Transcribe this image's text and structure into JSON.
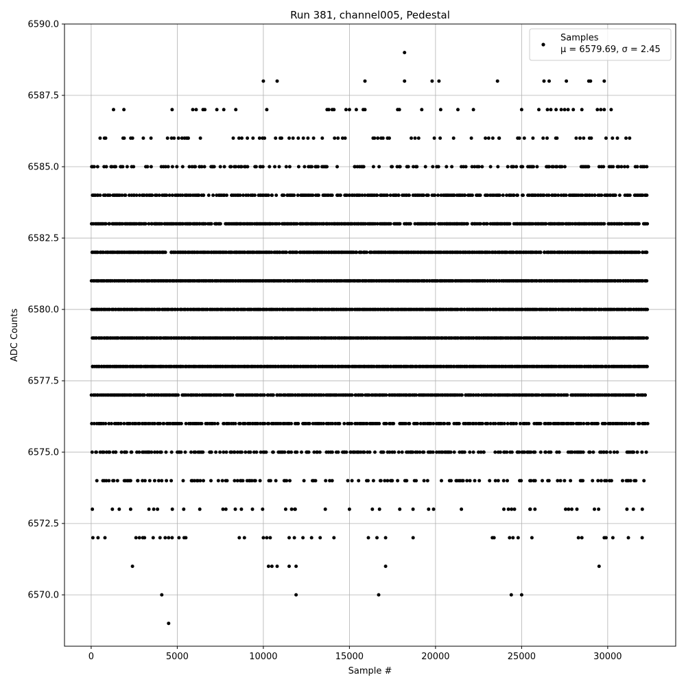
{
  "chart_data": {
    "type": "scatter",
    "title": "Run 381, channel005, Pedestal",
    "xlabel": "Sample #",
    "ylabel": "ADC Counts",
    "xlim": [
      -1550,
      33950
    ],
    "ylim": [
      6568.2,
      6590.0
    ],
    "xticks": [
      0,
      5000,
      10000,
      15000,
      20000,
      25000,
      30000
    ],
    "xtick_labels": [
      "0",
      "5000",
      "10000",
      "15000",
      "20000",
      "25000",
      "30000"
    ],
    "yticks": [
      6570.0,
      6572.5,
      6575.0,
      6577.5,
      6580.0,
      6582.5,
      6585.0,
      6587.5,
      6590.0
    ],
    "ytick_labels": [
      "6570.0",
      "6572.5",
      "6575.0",
      "6577.5",
      "6580.0",
      "6582.5",
      "6585.0",
      "6587.5",
      "6590.0"
    ],
    "grid": true,
    "legend_position": "top-right",
    "marker_color": "#000000",
    "grid_color": "#b0b0b0",
    "series": [
      {
        "name": "Samples",
        "legend_stats": "μ = 6579.69, σ = 2.45",
        "x_range": [
          0,
          32300
        ],
        "levels": [
          {
            "y": 6578,
            "density": 1.0
          },
          {
            "y": 6579,
            "density": 1.0
          },
          {
            "y": 6580,
            "density": 1.0
          },
          {
            "y": 6581,
            "density": 1.0
          },
          {
            "y": 6582,
            "density": 0.95
          },
          {
            "y": 6577,
            "density": 0.9
          },
          {
            "y": 6583,
            "density": 0.85
          },
          {
            "y": 6576,
            "density": 0.75
          },
          {
            "y": 6584,
            "density": 0.7
          },
          {
            "y": 6575,
            "density": 0.55
          },
          {
            "y": 6585,
            "density": 0.35
          },
          {
            "y": 6574,
            "density": 0.3
          },
          {
            "y": 6586,
            "density": 0.18
          },
          {
            "y": 6573,
            "density": 0.08
          }
        ],
        "sparse_points": [
          [
            100,
            6572
          ],
          [
            400,
            6572
          ],
          [
            800,
            6572
          ],
          [
            2600,
            6572
          ],
          [
            2800,
            6572
          ],
          [
            3000,
            6572
          ],
          [
            3100,
            6572
          ],
          [
            3600,
            6572
          ],
          [
            4000,
            6572
          ],
          [
            4300,
            6572
          ],
          [
            4500,
            6572
          ],
          [
            4700,
            6572
          ],
          [
            5100,
            6572
          ],
          [
            5400,
            6572
          ],
          [
            5500,
            6572
          ],
          [
            8600,
            6572
          ],
          [
            8900,
            6572
          ],
          [
            10000,
            6572
          ],
          [
            10200,
            6572
          ],
          [
            10400,
            6572
          ],
          [
            11500,
            6572
          ],
          [
            11800,
            6572
          ],
          [
            12300,
            6572
          ],
          [
            12800,
            6572
          ],
          [
            13300,
            6572
          ],
          [
            14100,
            6572
          ],
          [
            16100,
            6572
          ],
          [
            16600,
            6572
          ],
          [
            17100,
            6572
          ],
          [
            18700,
            6572
          ],
          [
            23300,
            6572
          ],
          [
            23400,
            6572
          ],
          [
            24300,
            6572
          ],
          [
            24500,
            6572
          ],
          [
            24800,
            6572
          ],
          [
            25600,
            6572
          ],
          [
            28300,
            6572
          ],
          [
            28500,
            6572
          ],
          [
            29800,
            6572
          ],
          [
            29900,
            6572
          ],
          [
            30300,
            6572
          ],
          [
            31200,
            6572
          ],
          [
            32000,
            6572
          ],
          [
            2400,
            6571
          ],
          [
            10300,
            6571
          ],
          [
            10500,
            6571
          ],
          [
            10800,
            6571
          ],
          [
            11500,
            6571
          ],
          [
            11900,
            6571
          ],
          [
            17100,
            6571
          ],
          [
            29500,
            6571
          ],
          [
            4100,
            6570
          ],
          [
            11900,
            6570
          ],
          [
            16700,
            6570
          ],
          [
            24400,
            6570
          ],
          [
            25000,
            6570
          ],
          [
            4500,
            6569
          ],
          [
            1300,
            6587
          ],
          [
            1900,
            6587
          ],
          [
            4700,
            6587
          ],
          [
            5900,
            6587
          ],
          [
            6100,
            6587
          ],
          [
            6500,
            6587
          ],
          [
            6600,
            6587
          ],
          [
            7300,
            6587
          ],
          [
            7700,
            6587
          ],
          [
            8400,
            6587
          ],
          [
            10200,
            6587
          ],
          [
            13700,
            6587
          ],
          [
            13800,
            6587
          ],
          [
            14000,
            6587
          ],
          [
            14100,
            6587
          ],
          [
            14800,
            6587
          ],
          [
            15000,
            6587
          ],
          [
            15400,
            6587
          ],
          [
            15800,
            6587
          ],
          [
            15900,
            6587
          ],
          [
            17800,
            6587
          ],
          [
            17900,
            6587
          ],
          [
            19200,
            6587
          ],
          [
            20300,
            6587
          ],
          [
            21300,
            6587
          ],
          [
            22200,
            6587
          ],
          [
            25000,
            6587
          ],
          [
            26000,
            6587
          ],
          [
            26500,
            6587
          ],
          [
            26700,
            6587
          ],
          [
            27000,
            6587
          ],
          [
            27300,
            6587
          ],
          [
            27500,
            6587
          ],
          [
            27700,
            6587
          ],
          [
            28000,
            6587
          ],
          [
            28500,
            6587
          ],
          [
            29400,
            6587
          ],
          [
            29600,
            6587
          ],
          [
            29800,
            6587
          ],
          [
            30200,
            6587
          ],
          [
            10000,
            6588
          ],
          [
            10800,
            6588
          ],
          [
            15900,
            6588
          ],
          [
            18200,
            6588
          ],
          [
            19800,
            6588
          ],
          [
            20200,
            6588
          ],
          [
            23600,
            6588
          ],
          [
            26300,
            6588
          ],
          [
            26600,
            6588
          ],
          [
            27600,
            6588
          ],
          [
            28900,
            6588
          ],
          [
            29000,
            6588
          ],
          [
            29800,
            6588
          ],
          [
            18200,
            6589
          ]
        ]
      }
    ]
  }
}
